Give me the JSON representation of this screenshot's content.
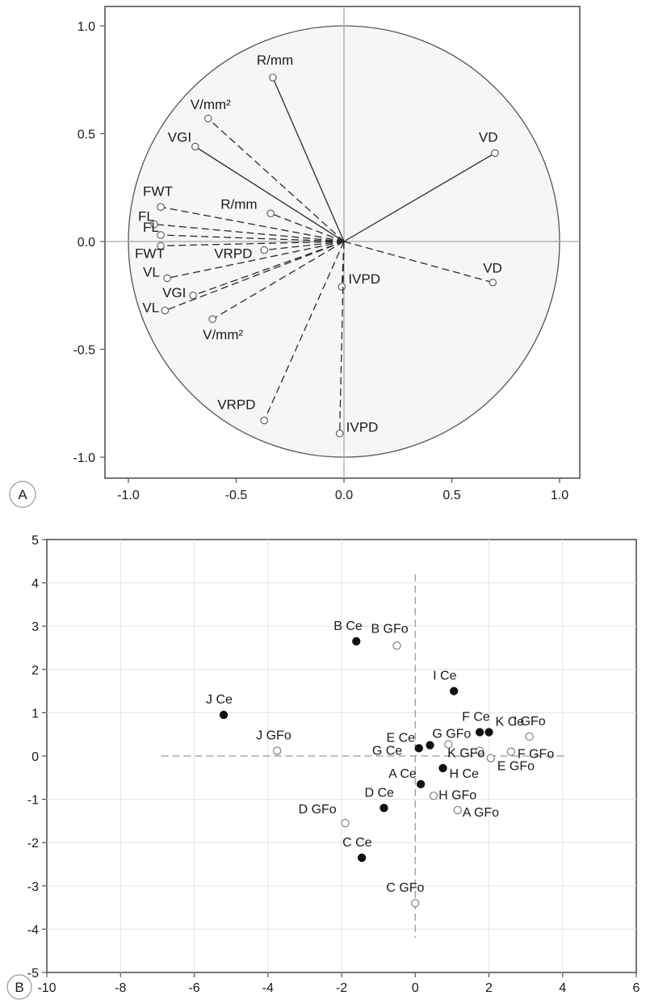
{
  "chart_data": [
    {
      "type": "scatter",
      "panel_label": "A",
      "xlim": [
        -1.1,
        1.1
      ],
      "ylim": [
        -1.1,
        1.1
      ],
      "xticks": [
        -1.0,
        -0.5,
        0.0,
        0.5,
        1.0
      ],
      "yticks": [
        -1.0,
        -0.5,
        0.0,
        0.5,
        1.0
      ],
      "xtick_labels": [
        "-1.0",
        "-0.5",
        "0.0",
        "0.5",
        "1.0"
      ],
      "ytick_labels": [
        "1.0",
        "0.5",
        "0.0",
        "-0.5",
        "-1.0"
      ],
      "unit_circle": true,
      "grid": false,
      "vectors": [
        {
          "label": "R/mm",
          "x": -0.33,
          "y": 0.76,
          "style": "solid"
        },
        {
          "label": "V/mm²",
          "x": -0.63,
          "y": 0.57,
          "style": "dashed"
        },
        {
          "label": "VGI",
          "x": -0.69,
          "y": 0.44,
          "style": "solid"
        },
        {
          "label": "VD",
          "x": 0.7,
          "y": 0.41,
          "style": "solid"
        },
        {
          "label": "FWT",
          "x": -0.85,
          "y": 0.16,
          "style": "dashed"
        },
        {
          "label": "R/mm",
          "x": -0.34,
          "y": 0.13,
          "style": "dashed"
        },
        {
          "label": "FL",
          "x": -0.88,
          "y": 0.08,
          "style": "dashed"
        },
        {
          "label": "FL",
          "x": -0.85,
          "y": 0.03,
          "style": "dashed"
        },
        {
          "label": "FWT",
          "x": -0.85,
          "y": -0.02,
          "style": "dashed"
        },
        {
          "label": "VRPD",
          "x": -0.37,
          "y": -0.04,
          "style": "dashed"
        },
        {
          "label": "VL",
          "x": -0.82,
          "y": -0.17,
          "style": "dashed"
        },
        {
          "label": "IVPD",
          "x": -0.01,
          "y": -0.21,
          "style": "dashed"
        },
        {
          "label": "VD",
          "x": 0.69,
          "y": -0.19,
          "style": "dashed"
        },
        {
          "label": "VGI",
          "x": -0.7,
          "y": -0.25,
          "style": "dashed"
        },
        {
          "label": "VL",
          "x": -0.83,
          "y": -0.32,
          "style": "dashed"
        },
        {
          "label": "V/mm²",
          "x": -0.61,
          "y": -0.36,
          "style": "dashed"
        },
        {
          "label": "VRPD",
          "x": -0.37,
          "y": -0.83,
          "style": "dashed"
        },
        {
          "label": "IVPD",
          "x": -0.02,
          "y": -0.89,
          "style": "dashed"
        }
      ]
    },
    {
      "type": "scatter",
      "panel_label": "B",
      "xlim": [
        -10,
        6
      ],
      "ylim": [
        -5,
        5
      ],
      "xticks": [
        -10,
        -8,
        -6,
        -4,
        -2,
        0,
        2,
        4,
        6
      ],
      "yticks": [
        -5,
        -4,
        -3,
        -2,
        -1,
        0,
        1,
        2,
        3,
        4,
        5
      ],
      "xtick_labels": [
        "-10",
        "-8",
        "-6",
        "-4",
        "-2",
        "0",
        "2",
        "4",
        "6"
      ],
      "ytick_labels": [
        "5",
        "4",
        "3",
        "2",
        "1",
        "0",
        "-1",
        "-2",
        "-3",
        "-4",
        "-5"
      ],
      "grid": true,
      "series": [
        {
          "marker": "filled",
          "points": [
            {
              "label": "B Ce",
              "x": -1.6,
              "y": 2.65
            },
            {
              "label": "J Ce",
              "x": -5.2,
              "y": 0.95
            },
            {
              "label": "I Ce",
              "x": 1.05,
              "y": 1.5
            },
            {
              "label": "F Ce",
              "x": 1.75,
              "y": 0.55
            },
            {
              "label": "K Ce",
              "x": 2.0,
              "y": 0.55
            },
            {
              "label": "E Ce",
              "x": 0.4,
              "y": 0.25
            },
            {
              "label": "G Ce",
              "x": 0.1,
              "y": 0.18
            },
            {
              "label": "H Ce",
              "x": 0.75,
              "y": -0.28
            },
            {
              "label": "A Ce",
              "x": 0.15,
              "y": -0.65
            },
            {
              "label": "D Ce",
              "x": -0.85,
              "y": -1.2
            },
            {
              "label": "C Ce",
              "x": -1.45,
              "y": -2.35
            }
          ]
        },
        {
          "marker": "open",
          "points": [
            {
              "label": "B GFo",
              "x": -0.5,
              "y": 2.55
            },
            {
              "label": "I GFo",
              "x": 3.1,
              "y": 0.45
            },
            {
              "label": "J GFo",
              "x": -3.75,
              "y": 0.12
            },
            {
              "label": "G GFo",
              "x": 0.9,
              "y": 0.27
            },
            {
              "label": "F GFo",
              "x": 2.6,
              "y": 0.1
            },
            {
              "label": "K GFo",
              "x": 1.75,
              "y": 0.12
            },
            {
              "label": "E GFo",
              "x": 2.05,
              "y": -0.05
            },
            {
              "label": "H GFo",
              "x": 0.5,
              "y": -0.92
            },
            {
              "label": "A GFo",
              "x": 1.15,
              "y": -1.25
            },
            {
              "label": "D GFo",
              "x": -1.9,
              "y": -1.55
            },
            {
              "label": "C GFo",
              "x": 0.0,
              "y": -3.4
            }
          ]
        }
      ]
    }
  ]
}
